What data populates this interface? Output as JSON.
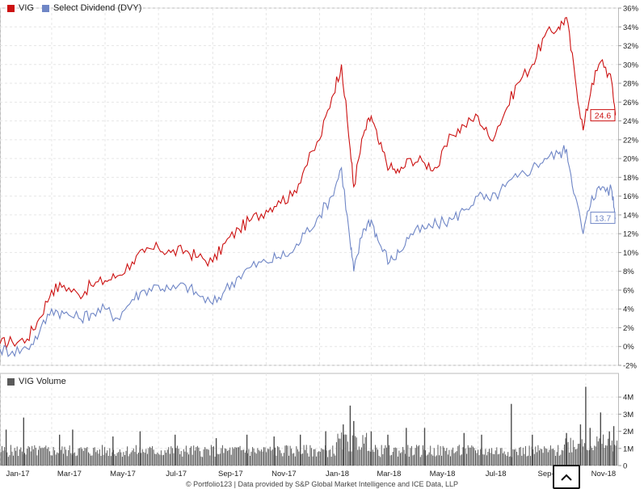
{
  "legend": {
    "items": [
      {
        "label": "VIG",
        "color": "#cc1111"
      },
      {
        "label": "Select Dividend (DVY)",
        "color": "#6f86c6"
      }
    ]
  },
  "volume_legend": {
    "label": "VIG Volume",
    "color": "#5a5a5a"
  },
  "footer": "© Portfolio123 | Data provided by S&P Global Market Intelligence and ICE Data, LLP",
  "scroll_button_icon": "chevron-up-icon",
  "chart_data": [
    {
      "type": "line",
      "title": "",
      "ylim": [
        -2,
        36
      ],
      "y_ticks": [
        "36%",
        "34%",
        "32%",
        "30%",
        "28%",
        "26%",
        "24%",
        "22%",
        "20%",
        "18%",
        "16%",
        "14%",
        "12%",
        "10%",
        "8%",
        "6%",
        "4%",
        "2%",
        "0%",
        "-2%"
      ],
      "x_ticks": [
        "Jan-17",
        "Mar-17",
        "May-17",
        "Jul-17",
        "Sep-17",
        "Nov-17",
        "Jan-18",
        "Mar-18",
        "May-18",
        "Jul-18",
        "Sep-18",
        "Nov-18"
      ],
      "x": [
        "2017-01-01",
        "2017-01-15",
        "2017-02-01",
        "2017-02-15",
        "2017-03-01",
        "2017-03-15",
        "2017-04-01",
        "2017-04-15",
        "2017-05-01",
        "2017-05-15",
        "2017-06-01",
        "2017-06-15",
        "2017-07-01",
        "2017-07-15",
        "2017-08-01",
        "2017-08-15",
        "2017-09-01",
        "2017-09-15",
        "2017-10-01",
        "2017-10-15",
        "2017-11-01",
        "2017-11-15",
        "2017-12-01",
        "2017-12-15",
        "2018-01-01",
        "2018-01-15",
        "2018-01-26",
        "2018-02-05",
        "2018-02-09",
        "2018-02-20",
        "2018-03-01",
        "2018-03-10",
        "2018-03-22",
        "2018-04-02",
        "2018-04-15",
        "2018-05-01",
        "2018-05-15",
        "2018-06-01",
        "2018-06-15",
        "2018-07-01",
        "2018-07-15",
        "2018-08-01",
        "2018-08-15",
        "2018-09-01",
        "2018-09-15",
        "2018-10-01",
        "2018-10-10",
        "2018-10-20",
        "2018-10-29",
        "2018-11-08",
        "2018-11-20",
        "2018-12-01",
        "2018-12-05"
      ],
      "series": [
        {
          "name": "VIG",
          "color": "#cc1111",
          "last_label": "24.6",
          "values": [
            0.3,
            0.5,
            0.8,
            3.0,
            6.0,
            6.5,
            5.5,
            6.5,
            7.0,
            7.5,
            9.0,
            10.0,
            10.5,
            10.0,
            10.2,
            9.5,
            9.0,
            11.0,
            12.5,
            13.5,
            14.5,
            15.5,
            16.0,
            19.0,
            22.0,
            26.5,
            30.0,
            21.0,
            17.0,
            22.5,
            24.5,
            21.5,
            19.0,
            18.5,
            20.0,
            19.5,
            19.0,
            22.5,
            23.5,
            24.5,
            22.0,
            25.0,
            28.0,
            30.0,
            33.0,
            34.0,
            35.0,
            28.5,
            23.0,
            28.0,
            30.5,
            28.0,
            24.6
          ]
        },
        {
          "name": "Select Dividend (DVY)",
          "color": "#6f86c6",
          "last_label": "13.7",
          "values": [
            -0.3,
            -0.5,
            -0.2,
            1.5,
            4.0,
            3.5,
            3.0,
            3.5,
            4.0,
            3.0,
            5.0,
            6.0,
            6.5,
            6.0,
            6.5,
            5.5,
            4.5,
            6.0,
            7.5,
            8.5,
            9.0,
            9.5,
            10.0,
            12.0,
            14.0,
            16.0,
            19.0,
            11.0,
            8.0,
            12.5,
            13.5,
            11.0,
            9.0,
            10.0,
            12.0,
            12.5,
            13.0,
            13.5,
            14.5,
            16.0,
            15.5,
            17.0,
            18.0,
            19.0,
            20.0,
            20.5,
            21.0,
            16.0,
            12.0,
            16.0,
            17.0,
            16.5,
            13.7
          ]
        }
      ]
    },
    {
      "type": "bar",
      "title": "",
      "ylim": [
        0,
        5
      ],
      "y_ticks": [
        "4M",
        "3M",
        "2M",
        "1M",
        "0"
      ],
      "series": [
        {
          "name": "VIG Volume",
          "color": "#5a5a5a"
        }
      ],
      "baseline_volume_m": 0.9,
      "spikes": [
        {
          "date": "2017-01-08",
          "value": 2.1
        },
        {
          "date": "2017-01-28",
          "value": 2.8
        },
        {
          "date": "2017-03-10",
          "value": 1.8
        },
        {
          "date": "2017-03-25",
          "value": 2.1
        },
        {
          "date": "2017-05-10",
          "value": 1.7
        },
        {
          "date": "2017-06-10",
          "value": 2.0
        },
        {
          "date": "2017-07-20",
          "value": 1.8
        },
        {
          "date": "2017-09-05",
          "value": 1.6
        },
        {
          "date": "2017-10-10",
          "value": 1.8
        },
        {
          "date": "2017-11-10",
          "value": 1.7
        },
        {
          "date": "2017-12-10",
          "value": 1.8
        },
        {
          "date": "2018-01-08",
          "value": 2.0
        },
        {
          "date": "2018-01-28",
          "value": 2.4
        },
        {
          "date": "2018-02-05",
          "value": 3.5
        },
        {
          "date": "2018-02-09",
          "value": 2.6
        },
        {
          "date": "2018-03-01",
          "value": 2.0
        },
        {
          "date": "2018-03-20",
          "value": 1.8
        },
        {
          "date": "2018-04-10",
          "value": 2.2
        },
        {
          "date": "2018-05-01",
          "value": 2.2
        },
        {
          "date": "2018-06-15",
          "value": 1.9
        },
        {
          "date": "2018-07-05",
          "value": 1.8
        },
        {
          "date": "2018-08-08",
          "value": 3.6
        },
        {
          "date": "2018-09-01",
          "value": 1.8
        },
        {
          "date": "2018-10-10",
          "value": 1.9
        },
        {
          "date": "2018-10-26",
          "value": 2.4
        },
        {
          "date": "2018-11-01",
          "value": 4.6
        },
        {
          "date": "2018-11-06",
          "value": 2.2
        },
        {
          "date": "2018-11-18",
          "value": 3.1
        },
        {
          "date": "2018-11-28",
          "value": 2.0
        },
        {
          "date": "2018-12-03",
          "value": 2.3
        }
      ]
    }
  ]
}
